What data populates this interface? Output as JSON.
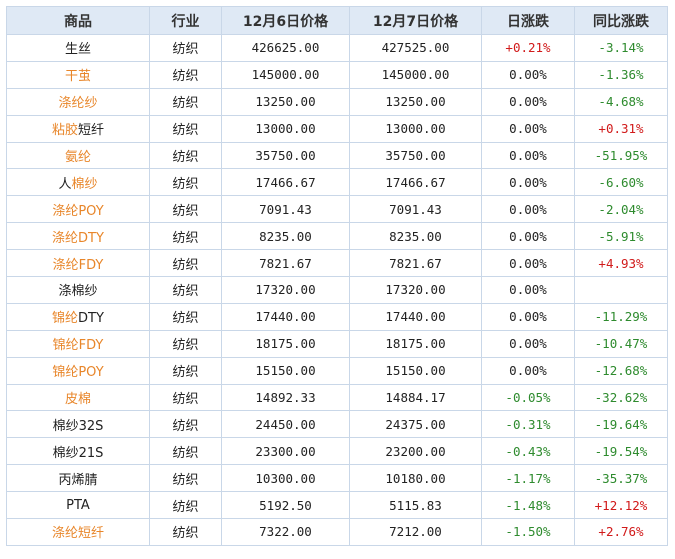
{
  "colors": {
    "link": "#e8862a",
    "up": "#d11a1a",
    "down": "#2e8b2e",
    "header_bg": "#dfe9f5",
    "border": "#c9d7e8"
  },
  "headers": [
    "商品",
    "行业",
    "12月6日价格",
    "12月7日价格",
    "日涨跌",
    "同比涨跌"
  ],
  "rows": [
    {
      "name": [
        {
          "t": "生丝",
          "link": false
        }
      ],
      "industry": "纺织",
      "p1": "426625.00",
      "p2": "427525.00",
      "daily": "+0.21%",
      "daily_dir": "up",
      "yoy": "-3.14%",
      "yoy_dir": "down"
    },
    {
      "name": [
        {
          "t": "干茧",
          "link": true
        }
      ],
      "industry": "纺织",
      "p1": "145000.00",
      "p2": "145000.00",
      "daily": "0.00%",
      "daily_dir": "flat",
      "yoy": "-1.36%",
      "yoy_dir": "down"
    },
    {
      "name": [
        {
          "t": "涤纶纱",
          "link": true
        }
      ],
      "industry": "纺织",
      "p1": "13250.00",
      "p2": "13250.00",
      "daily": "0.00%",
      "daily_dir": "flat",
      "yoy": "-4.68%",
      "yoy_dir": "down"
    },
    {
      "name": [
        {
          "t": "粘胶",
          "link": true
        },
        {
          "t": "短纤",
          "link": false
        }
      ],
      "industry": "纺织",
      "p1": "13000.00",
      "p2": "13000.00",
      "daily": "0.00%",
      "daily_dir": "flat",
      "yoy": "+0.31%",
      "yoy_dir": "up"
    },
    {
      "name": [
        {
          "t": "氨纶",
          "link": true
        }
      ],
      "industry": "纺织",
      "p1": "35750.00",
      "p2": "35750.00",
      "daily": "0.00%",
      "daily_dir": "flat",
      "yoy": "-51.95%",
      "yoy_dir": "down"
    },
    {
      "name": [
        {
          "t": "人",
          "link": false
        },
        {
          "t": "棉纱",
          "link": true
        }
      ],
      "industry": "纺织",
      "p1": "17466.67",
      "p2": "17466.67",
      "daily": "0.00%",
      "daily_dir": "flat",
      "yoy": "-6.60%",
      "yoy_dir": "down"
    },
    {
      "name": [
        {
          "t": "涤纶POY",
          "link": true
        }
      ],
      "industry": "纺织",
      "p1": "7091.43",
      "p2": "7091.43",
      "daily": "0.00%",
      "daily_dir": "flat",
      "yoy": "-2.04%",
      "yoy_dir": "down"
    },
    {
      "name": [
        {
          "t": "涤纶DTY",
          "link": true
        }
      ],
      "industry": "纺织",
      "p1": "8235.00",
      "p2": "8235.00",
      "daily": "0.00%",
      "daily_dir": "flat",
      "yoy": "-5.91%",
      "yoy_dir": "down"
    },
    {
      "name": [
        {
          "t": "涤纶FDY",
          "link": true
        }
      ],
      "industry": "纺织",
      "p1": "7821.67",
      "p2": "7821.67",
      "daily": "0.00%",
      "daily_dir": "flat",
      "yoy": "+4.93%",
      "yoy_dir": "up"
    },
    {
      "name": [
        {
          "t": "涤棉纱",
          "link": false
        }
      ],
      "industry": "纺织",
      "p1": "17320.00",
      "p2": "17320.00",
      "daily": "0.00%",
      "daily_dir": "flat",
      "yoy": "",
      "yoy_dir": "flat"
    },
    {
      "name": [
        {
          "t": "锦纶",
          "link": true
        },
        {
          "t": "DTY",
          "link": false
        }
      ],
      "industry": "纺织",
      "p1": "17440.00",
      "p2": "17440.00",
      "daily": "0.00%",
      "daily_dir": "flat",
      "yoy": "-11.29%",
      "yoy_dir": "down"
    },
    {
      "name": [
        {
          "t": "锦纶FDY",
          "link": true
        }
      ],
      "industry": "纺织",
      "p1": "18175.00",
      "p2": "18175.00",
      "daily": "0.00%",
      "daily_dir": "flat",
      "yoy": "-10.47%",
      "yoy_dir": "down"
    },
    {
      "name": [
        {
          "t": "锦纶POY",
          "link": true
        }
      ],
      "industry": "纺织",
      "p1": "15150.00",
      "p2": "15150.00",
      "daily": "0.00%",
      "daily_dir": "flat",
      "yoy": "-12.68%",
      "yoy_dir": "down"
    },
    {
      "name": [
        {
          "t": "皮棉",
          "link": true
        }
      ],
      "industry": "纺织",
      "p1": "14892.33",
      "p2": "14884.17",
      "daily": "-0.05%",
      "daily_dir": "down",
      "yoy": "-32.62%",
      "yoy_dir": "down"
    },
    {
      "name": [
        {
          "t": "棉纱32S",
          "link": false
        }
      ],
      "industry": "纺织",
      "p1": "24450.00",
      "p2": "24375.00",
      "daily": "-0.31%",
      "daily_dir": "down",
      "yoy": "-19.64%",
      "yoy_dir": "down"
    },
    {
      "name": [
        {
          "t": "棉纱21S",
          "link": false
        }
      ],
      "industry": "纺织",
      "p1": "23300.00",
      "p2": "23200.00",
      "daily": "-0.43%",
      "daily_dir": "down",
      "yoy": "-19.54%",
      "yoy_dir": "down"
    },
    {
      "name": [
        {
          "t": "丙烯腈",
          "link": false
        }
      ],
      "industry": "纺织",
      "p1": "10300.00",
      "p2": "10180.00",
      "daily": "-1.17%",
      "daily_dir": "down",
      "yoy": "-35.37%",
      "yoy_dir": "down"
    },
    {
      "name": [
        {
          "t": "PTA",
          "link": false
        }
      ],
      "industry": "纺织",
      "p1": "5192.50",
      "p2": "5115.83",
      "daily": "-1.48%",
      "daily_dir": "down",
      "yoy": "+12.12%",
      "yoy_dir": "up"
    },
    {
      "name": [
        {
          "t": "涤纶短纤",
          "link": true
        }
      ],
      "industry": "纺织",
      "p1": "7322.00",
      "p2": "7212.00",
      "daily": "-1.50%",
      "daily_dir": "down",
      "yoy": "+2.76%",
      "yoy_dir": "up"
    }
  ]
}
